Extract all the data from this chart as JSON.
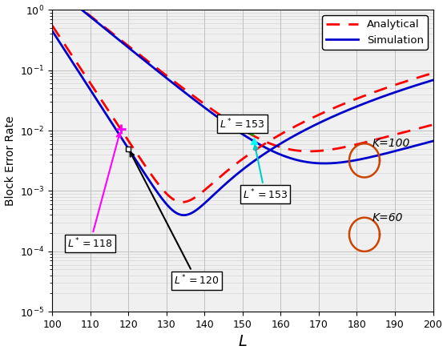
{
  "xlim": [
    100,
    200
  ],
  "xlabel": "L",
  "ylabel": "Block Error Rate",
  "grid_color": "#c0c0c0",
  "background_color": "#f0f0f0",
  "analytical_color": "#ff0000",
  "simulation_color": "#0000cc",
  "legend_entries": [
    "Analytical",
    "Simulation"
  ],
  "K100_label": "K=100",
  "K60_label": "K=60",
  "ellipse_color": "#cc4400",
  "ann_color_green": "#00aa00",
  "ann_color_cyan": "#00cccc",
  "ann_color_magenta": "#ff00ff",
  "ann_color_black": "#000000"
}
